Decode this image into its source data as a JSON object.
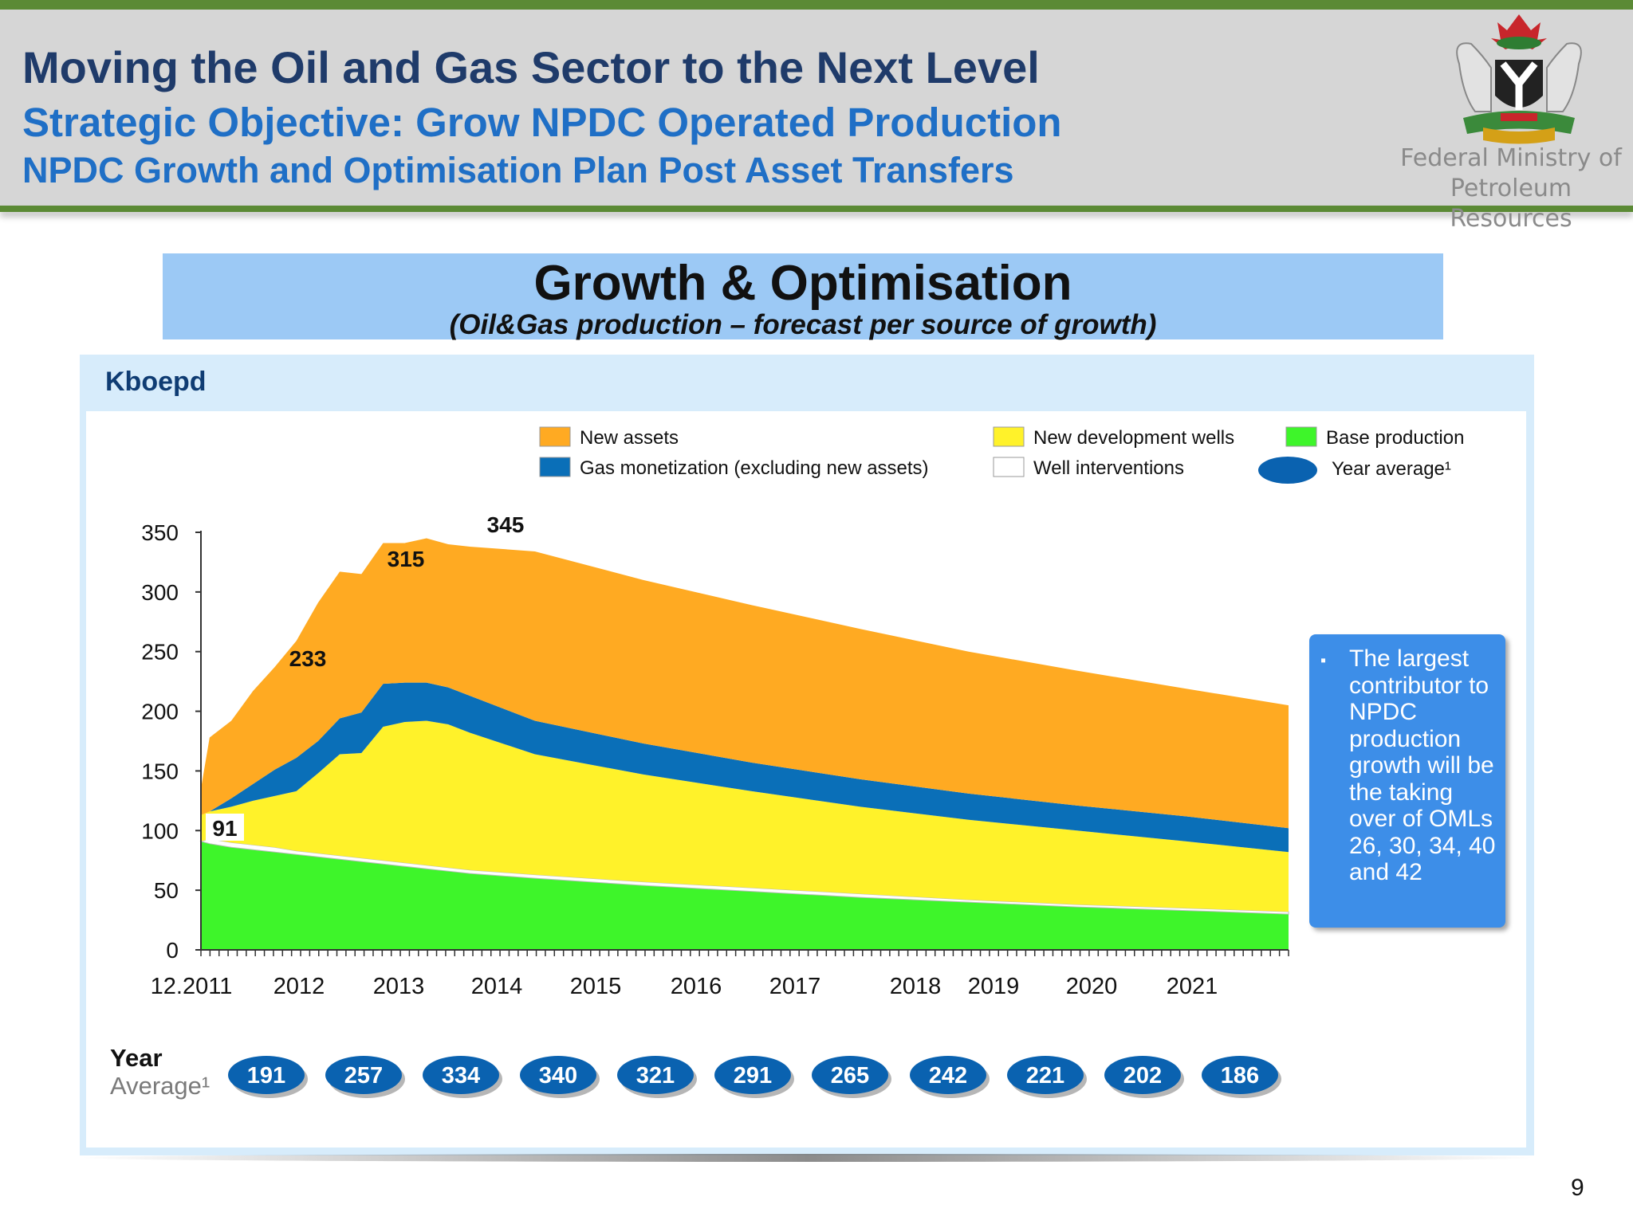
{
  "header": {
    "title": "Moving the Oil and Gas Sector to the Next Level",
    "subtitle": "Strategic Objective: Grow NPDC Operated Production",
    "subtitle2": "NPDC Growth and Optimisation Plan Post Asset Transfers",
    "ministry_line1": "Federal Ministry of",
    "ministry_line2": "Petroleum Resources",
    "logo": "nigeria-coat-of-arms"
  },
  "banner": {
    "title": "Growth & Optimisation",
    "subtitle": "(Oil&Gas production – forecast per source of growth)"
  },
  "colors": {
    "new_assets": "#ffaa22",
    "gas_monetization": "#0a6fb8",
    "new_development_wells": "#fff22a",
    "well_interventions": "#ffffff",
    "base_production": "#3ef52a",
    "year_average_bubble": "#0a62b0"
  },
  "callout": {
    "bullet": "▪",
    "text": "The largest contributor to NPDC production growth will be the taking over of OMLs 26, 30, 34, 40 and 42"
  },
  "year_average": {
    "label_line1": "Year",
    "label_line2": "Average¹",
    "values": [
      "191",
      "257",
      "334",
      "340",
      "321",
      "291",
      "265",
      "242",
      "221",
      "202",
      "186"
    ]
  },
  "page_number": "9",
  "chart_data": {
    "type": "area",
    "stacked": true,
    "ylabel": "Kboepd",
    "ylim": [
      0,
      350
    ],
    "yticks": [
      0,
      50,
      100,
      150,
      200,
      250,
      300,
      350
    ],
    "x_tick_labels": [
      "12.2011",
      "2012",
      "2013",
      "2014",
      "2015",
      "2016",
      "2017",
      "2018",
      "2019",
      "2020",
      "2021"
    ],
    "x": [
      2011.92,
      2012.0,
      2012.2,
      2012.4,
      2012.6,
      2012.8,
      2013.0,
      2013.2,
      2013.4,
      2013.6,
      2013.8,
      2014.0,
      2014.2,
      2014.4,
      2015.0,
      2016.0,
      2017.0,
      2018.0,
      2019.0,
      2020.0,
      2021.0,
      2021.95
    ],
    "series": [
      {
        "name": "Base production",
        "values": [
          91,
          89,
          86,
          84,
          82,
          80,
          78,
          76,
          74,
          72,
          70,
          68,
          66,
          64,
          60,
          54,
          49,
          44,
          40,
          36,
          33,
          30
        ]
      },
      {
        "name": "Well interventions",
        "values": [
          0,
          4,
          4,
          4,
          4,
          3,
          3,
          3,
          3,
          3,
          3,
          3,
          3,
          3,
          3,
          3,
          3,
          3,
          2,
          2,
          2,
          2
        ]
      },
      {
        "name": "New development wells",
        "values": [
          22,
          23,
          30,
          37,
          43,
          50,
          67,
          85,
          88,
          112,
          118,
          121,
          120,
          115,
          101,
          90,
          81,
          73,
          67,
          62,
          56,
          50
        ]
      },
      {
        "name": "Gas monetization (excluding new assets)",
        "values": [
          0,
          0,
          7,
          14,
          22,
          28,
          27,
          30,
          34,
          36,
          33,
          32,
          31,
          31,
          28,
          26,
          24,
          23,
          22,
          21,
          21,
          20
        ]
      },
      {
        "name": "New assets",
        "values": [
          22,
          62,
          65,
          78,
          86,
          98,
          116,
          123,
          116,
          118,
          117,
          121,
          120,
          125,
          142,
          137,
          132,
          126,
          119,
          113,
          107,
          103
        ]
      }
    ],
    "annotations": [
      {
        "x": 2011.92,
        "label": "91"
      },
      {
        "x": 2012.3,
        "label": "233"
      },
      {
        "x": 2013.2,
        "label": "315"
      },
      {
        "x": 2014.0,
        "label": "345"
      }
    ],
    "legend": [
      "New assets",
      "Gas monetization (excluding new assets)",
      "New development wells",
      "Well interventions",
      "Base production",
      "Year average¹"
    ],
    "legend_placement": "top"
  }
}
